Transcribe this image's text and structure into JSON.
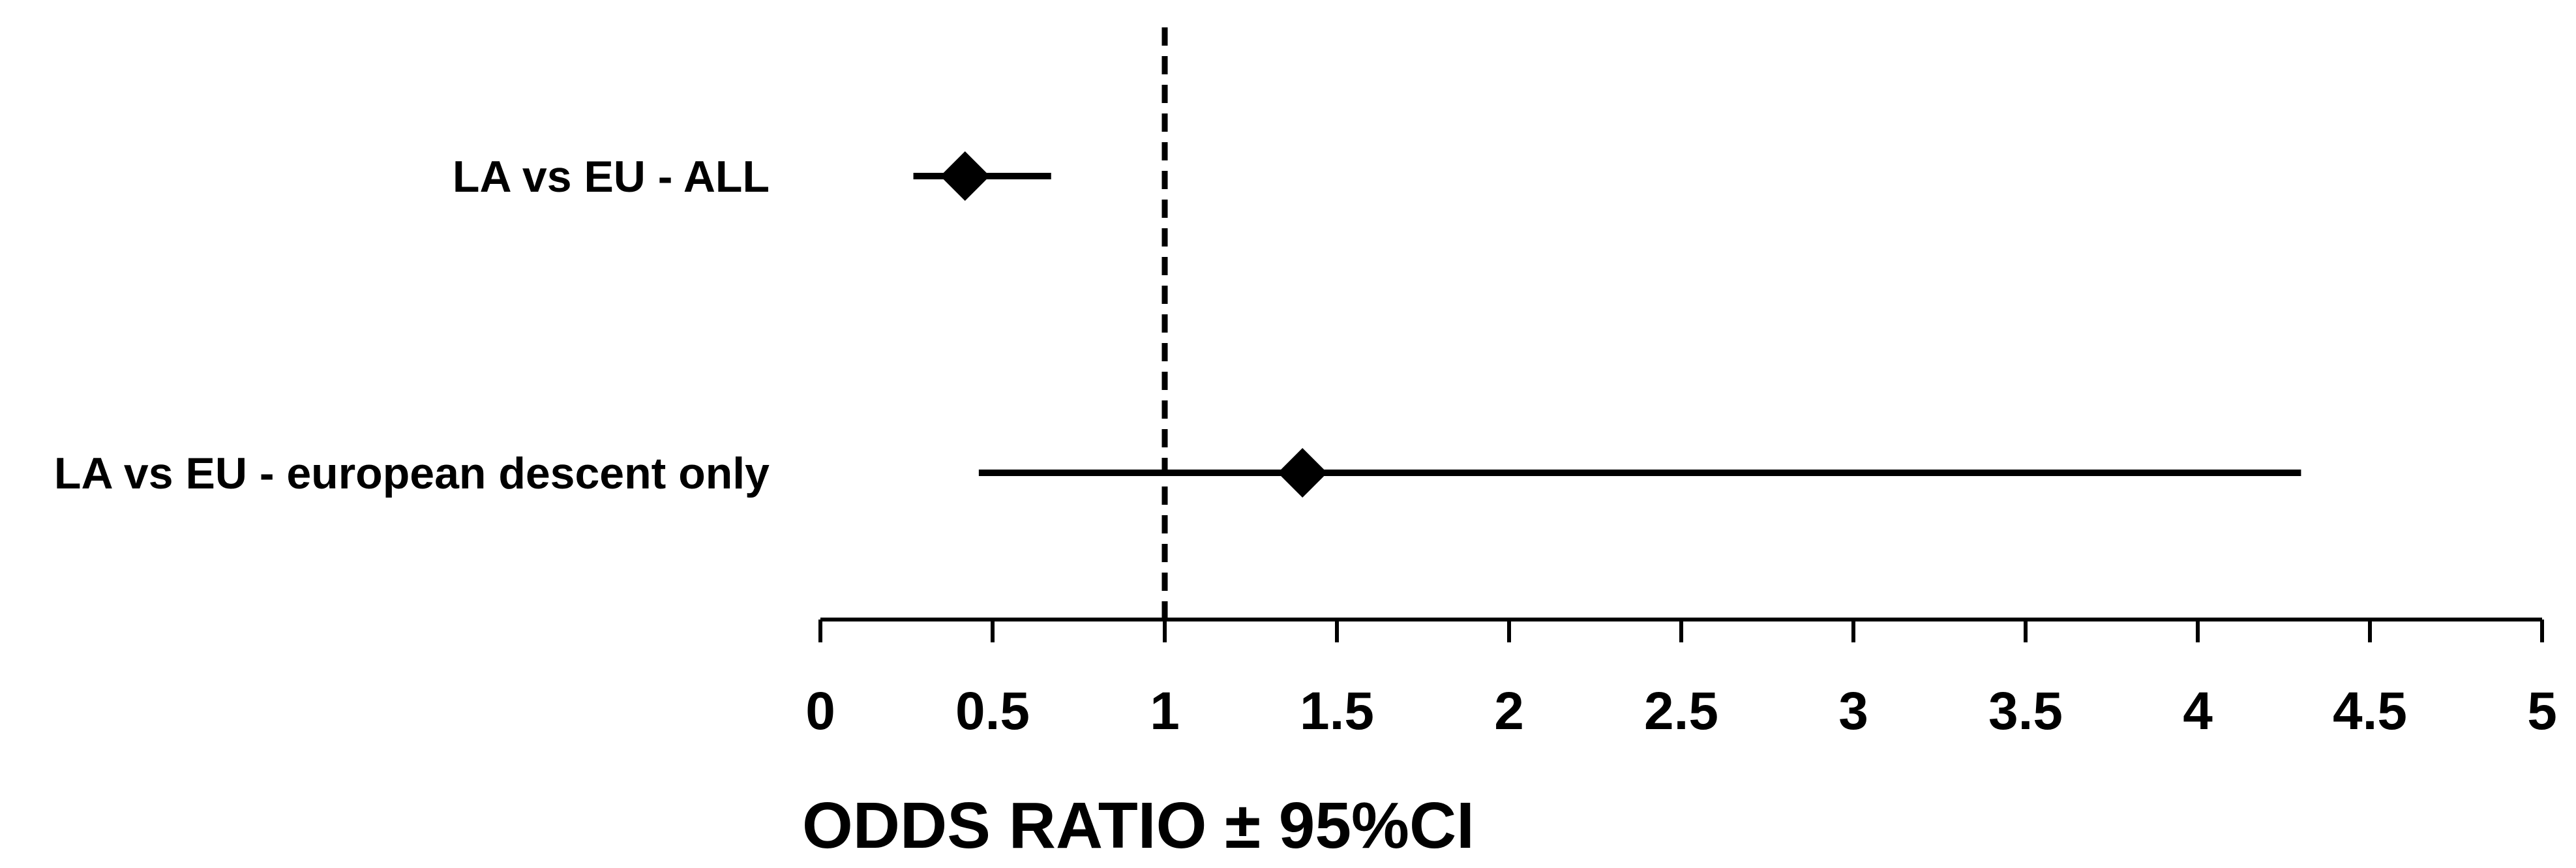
{
  "chart_data": {
    "type": "forest",
    "xlabel": "ODDS RATIO ± 95%CI",
    "xlim": [
      0,
      5
    ],
    "xticks": [
      0,
      0.5,
      1,
      1.5,
      2,
      2.5,
      3,
      3.5,
      4,
      4.5,
      5
    ],
    "xtick_labels": [
      "0",
      "0.5",
      "1",
      "1.5",
      "2",
      "2.5",
      "3",
      "3.5",
      "4",
      "4.5",
      "5"
    ],
    "reference_line": 1,
    "reference_style": "dashed",
    "marker": "diamond",
    "color": "#000000",
    "rows": [
      {
        "label": "LA vs EU - ALL",
        "estimate": 0.42,
        "ci_low": 0.27,
        "ci_high": 0.67
      },
      {
        "label": "LA vs EU - european descent only",
        "estimate": 1.4,
        "ci_low": 0.46,
        "ci_high": 4.3
      }
    ]
  }
}
